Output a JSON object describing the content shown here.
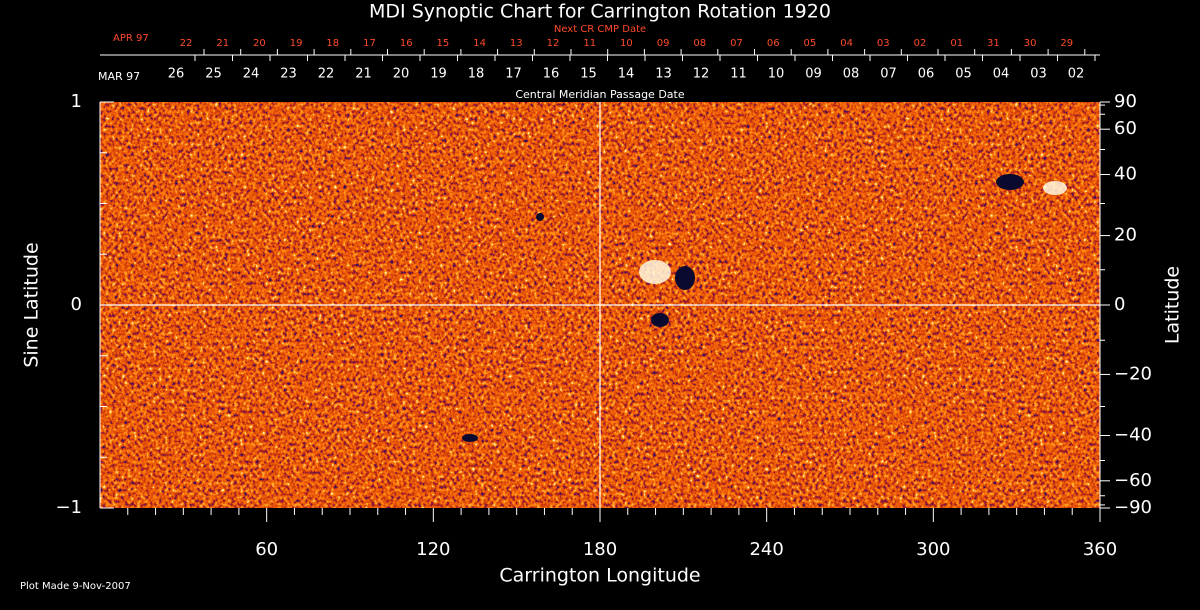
{
  "chart_data": {
    "type": "heatmap",
    "title": "MDI Synoptic Chart for Carrington Rotation 1920",
    "subtitle": "Next CR CMP Date",
    "date_axis_label": "Central Meridian Passage Date",
    "next_dates": {
      "month": "APR 97",
      "labels": [
        "22",
        "21",
        "20",
        "19",
        "18",
        "17",
        "16",
        "15",
        "14",
        "13",
        "12",
        "11",
        "10",
        "09",
        "08",
        "07",
        "06",
        "05",
        "04",
        "03",
        "02",
        "01",
        "31",
        "30",
        "29"
      ]
    },
    "dates": {
      "month": "MAR 97",
      "labels": [
        "26",
        "25",
        "24",
        "23",
        "22",
        "21",
        "20",
        "19",
        "18",
        "17",
        "16",
        "15",
        "14",
        "13",
        "12",
        "11",
        "10",
        "09",
        "08",
        "07",
        "06",
        "05",
        "04",
        "03",
        "02"
      ]
    },
    "xlabel": "Carrington Longitude",
    "ylabel": "Sine Latitude",
    "y2label": "Latitude",
    "xlim": [
      0,
      360
    ],
    "xticks": [
      60,
      120,
      180,
      240,
      300,
      360
    ],
    "xminorticks": [
      10,
      20,
      30,
      40,
      50,
      70,
      80,
      90,
      100,
      110,
      130,
      140,
      150,
      160,
      170,
      190,
      200,
      210,
      220,
      230,
      250,
      260,
      270,
      280,
      290,
      310,
      320,
      330,
      340,
      350
    ],
    "ylim": [
      -1,
      1
    ],
    "yticks": [
      {
        "value": -1,
        "label": "−1"
      },
      0,
      1
    ],
    "yminorticks": [
      -0.75,
      -0.5,
      -0.25,
      0.25,
      0.5,
      0.75
    ],
    "y2lim": [
      -90,
      90
    ],
    "y2scale": "sine",
    "y2ticks": [
      {
        "value": -90,
        "label": "−90"
      },
      {
        "value": -60,
        "label": "−60"
      },
      {
        "value": -40,
        "label": "−40"
      },
      {
        "value": -20,
        "label": "−20"
      },
      0,
      20,
      40,
      60,
      90
    ],
    "y2minorticks": [
      -80,
      -70,
      -50,
      -30,
      -10,
      10,
      30,
      50,
      70,
      80
    ],
    "xgrid": [
      180
    ],
    "ygrid": [
      0
    ],
    "footer": "Plot Made  9-Nov-2007"
  }
}
